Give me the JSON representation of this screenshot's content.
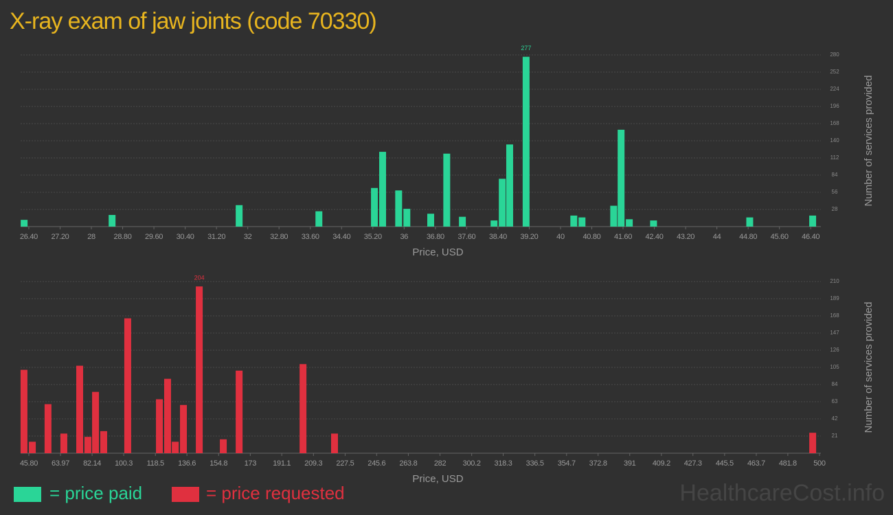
{
  "title": "X-ray exam of jaw joints (code 70330)",
  "watermark": "HealthcareCost.info",
  "chart_data": [
    {
      "type": "bar",
      "x": [
        26.28,
        28.53,
        31.78,
        33.82,
        35.24,
        35.45,
        35.86,
        36.07,
        36.68,
        37.09,
        37.49,
        38.3,
        38.51,
        38.7,
        39.12,
        40.34,
        40.55,
        41.36,
        41.55,
        41.76,
        42.38,
        44.84,
        46.45
      ],
      "series": [
        {
          "name": "= price paid",
          "color": "#2ad597",
          "values": [
            11,
            19,
            35,
            25,
            63,
            122,
            59,
            29,
            21,
            119,
            16,
            10,
            78,
            134,
            277,
            18,
            15,
            34,
            158,
            12,
            10,
            15,
            18
          ]
        }
      ],
      "xlim": [
        26.19,
        46.66
      ],
      "xticks": [
        {
          "value": 26.4,
          "label": "26.40"
        },
        {
          "value": 27.2,
          "label": "27.20"
        },
        28,
        {
          "value": 28.8,
          "label": "28.80"
        },
        {
          "value": 29.6,
          "label": "29.60"
        },
        {
          "value": 30.4,
          "label": "30.40"
        },
        {
          "value": 31.2,
          "label": "31.20"
        },
        32,
        {
          "value": 32.8,
          "label": "32.80"
        },
        {
          "value": 33.6,
          "label": "33.60"
        },
        {
          "value": 34.4,
          "label": "34.40"
        },
        {
          "value": 35.2,
          "label": "35.20"
        },
        36,
        {
          "value": 36.8,
          "label": "36.80"
        },
        {
          "value": 37.6,
          "label": "37.60"
        },
        {
          "value": 38.4,
          "label": "38.40"
        },
        {
          "value": 39.2,
          "label": "39.20"
        },
        40,
        {
          "value": 40.8,
          "label": "40.80"
        },
        {
          "value": 41.6,
          "label": "41.60"
        },
        {
          "value": 42.4,
          "label": "42.40"
        },
        {
          "value": 43.2,
          "label": "43.20"
        },
        44,
        {
          "value": 44.8,
          "label": "44.80"
        },
        {
          "value": 45.6,
          "label": "45.60"
        },
        {
          "value": 46.4,
          "label": "46.40"
        }
      ],
      "ylim": [
        0,
        280
      ],
      "yticks": [
        28,
        56,
        84,
        112,
        140,
        168,
        196,
        224,
        252,
        280
      ],
      "xlabel": "Price, USD",
      "ylabel": "Number of services provided",
      "grid": true
    },
    {
      "type": "bar",
      "x": [
        43.0,
        47.8,
        56.8,
        65.9,
        75.0,
        79.7,
        84.1,
        88.8,
        102.6,
        120.8,
        125.5,
        129.9,
        134.6,
        143.7,
        157.5,
        166.6,
        203.3,
        221.4,
        496.1
      ],
      "series": [
        {
          "name": "= price requested",
          "color": "#e0303f",
          "values": [
            102,
            14,
            60,
            24,
            107,
            20,
            75,
            27,
            165,
            66,
            91,
            14,
            59,
            204,
            17,
            101,
            109,
            24,
            25
          ]
        }
      ],
      "xlim": [
        41.06,
        500.8
      ],
      "xticks": [
        {
          "value": 45.8,
          "label": "45.80"
        },
        63.97,
        82.14,
        100.3,
        118.5,
        136.6,
        154.8,
        173,
        191.1,
        209.3,
        227.5,
        245.6,
        263.8,
        282,
        300.2,
        318.3,
        336.5,
        354.7,
        372.8,
        391,
        409.2,
        427.3,
        445.5,
        463.7,
        481.8,
        500
      ],
      "ylim": [
        0,
        210
      ],
      "yticks": [
        21,
        42,
        63,
        84,
        105,
        126,
        147,
        168,
        189,
        210
      ],
      "xlabel": "Price, USD",
      "ylabel": "Number of services provided",
      "grid": true
    }
  ]
}
